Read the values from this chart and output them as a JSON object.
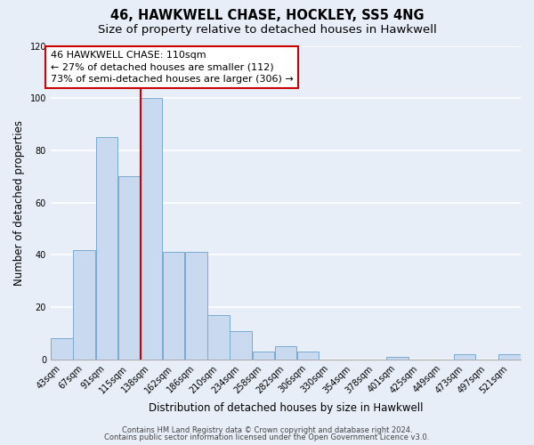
{
  "title": "46, HAWKWELL CHASE, HOCKLEY, SS5 4NG",
  "subtitle": "Size of property relative to detached houses in Hawkwell",
  "xlabel": "Distribution of detached houses by size in Hawkwell",
  "ylabel": "Number of detached properties",
  "bin_labels": [
    "43sqm",
    "67sqm",
    "91sqm",
    "115sqm",
    "138sqm",
    "162sqm",
    "186sqm",
    "210sqm",
    "234sqm",
    "258sqm",
    "282sqm",
    "306sqm",
    "330sqm",
    "354sqm",
    "378sqm",
    "401sqm",
    "425sqm",
    "449sqm",
    "473sqm",
    "497sqm",
    "521sqm"
  ],
  "bar_values": [
    8,
    42,
    85,
    70,
    100,
    41,
    41,
    17,
    11,
    3,
    5,
    3,
    0,
    0,
    0,
    1,
    0,
    0,
    2,
    0,
    2
  ],
  "bar_color": "#c9d9f0",
  "bar_edge_color": "#7aaad0",
  "vline_color": "#cc0000",
  "ylim": [
    0,
    120
  ],
  "yticks": [
    0,
    20,
    40,
    60,
    80,
    100,
    120
  ],
  "annotation_title": "46 HAWKWELL CHASE: 110sqm",
  "annotation_line1": "← 27% of detached houses are smaller (112)",
  "annotation_line2": "73% of semi-detached houses are larger (306) →",
  "annotation_box_color": "#cc0000",
  "footer_line1": "Contains HM Land Registry data © Crown copyright and database right 2024.",
  "footer_line2": "Contains public sector information licensed under the Open Government Licence v3.0.",
  "background_color": "#e8eef8",
  "grid_color": "#ffffff",
  "title_fontsize": 10.5,
  "subtitle_fontsize": 9.5,
  "axis_label_fontsize": 8.5,
  "tick_fontsize": 7,
  "footer_fontsize": 6,
  "annotation_fontsize": 8
}
